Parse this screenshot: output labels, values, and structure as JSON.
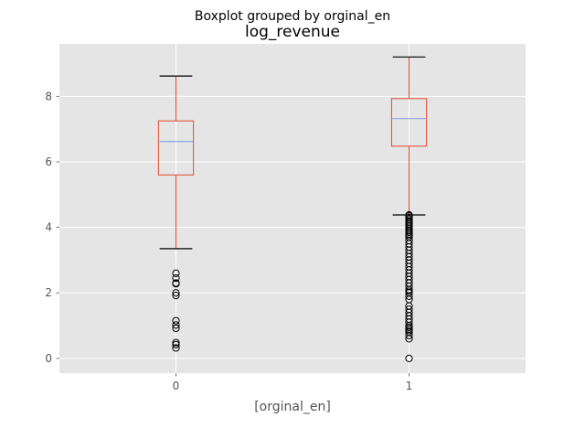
{
  "chart_data": {
    "type": "box",
    "suptitle": "Boxplot grouped by orginal_en",
    "title": "log_revenue",
    "xlabel": "[orginal_en]",
    "ylabel": "",
    "ylim": [
      -0.45,
      9.6
    ],
    "yticks": [
      "0",
      "2",
      "4",
      "6",
      "8"
    ],
    "ytick_values": [
      0,
      2,
      4,
      6,
      8
    ],
    "grid": true,
    "colors": {
      "background": "#e5e5e5",
      "grid": "#ffffff",
      "box": "#e24a33",
      "median": "#8ea1e6",
      "caps": "#000000",
      "outlier": "#000000"
    },
    "groups": [
      {
        "category": "0",
        "whisker_low": 3.35,
        "q1": 5.6,
        "median": 6.62,
        "q3": 7.25,
        "whisker_high": 8.62,
        "outliers": [
          2.6,
          2.45,
          2.3,
          2.28,
          2.0,
          1.92,
          1.15,
          1.02,
          0.92,
          0.48,
          0.42,
          0.32
        ]
      },
      {
        "category": "1",
        "whisker_low": 4.38,
        "q1": 6.48,
        "median": 7.32,
        "q3": 7.93,
        "whisker_high": 9.2,
        "outliers": [
          4.38,
          4.35,
          4.3,
          4.25,
          4.2,
          4.15,
          4.1,
          4.05,
          4.0,
          3.95,
          3.9,
          3.85,
          3.8,
          3.75,
          3.7,
          3.6,
          3.5,
          3.4,
          3.3,
          3.2,
          3.1,
          3.0,
          2.9,
          2.8,
          2.7,
          2.6,
          2.5,
          2.4,
          2.3,
          2.2,
          2.1,
          2.05,
          2.0,
          1.9,
          1.8,
          1.6,
          1.5,
          1.4,
          1.3,
          1.2,
          1.1,
          1.0,
          0.95,
          0.9,
          0.85,
          0.8,
          0.7,
          0.6,
          0.0
        ]
      }
    ]
  }
}
